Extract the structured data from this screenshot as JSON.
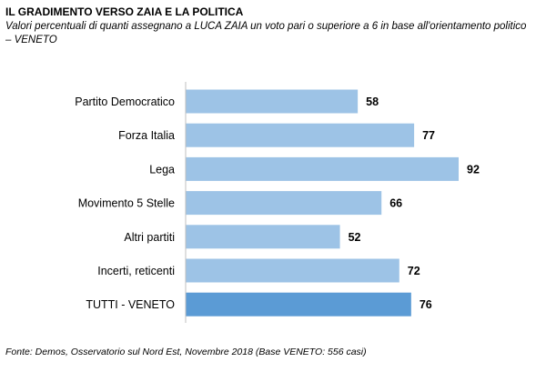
{
  "chart_data": {
    "type": "bar",
    "orientation": "horizontal",
    "title": "IL GRADIMENTO VERSO ZAIA E LA POLITICA",
    "subtitle": "Valori percentuali di quanti assegnano a LUCA ZAIA un voto pari o superiore a 6 in base all'orientamento politico – VENETO",
    "source": "Fonte: Demos, Osservatorio sul Nord Est, Novembre 2018 (Base VENETO: 556 casi)",
    "categories": [
      "Partito Democratico",
      "Forza Italia",
      "Lega",
      "Movimento 5 Stelle",
      "Altri partiti",
      "Incerti, reticenti",
      "TUTTI - VENETO"
    ],
    "values": [
      58,
      77,
      92,
      66,
      52,
      72,
      76
    ],
    "xlim": [
      0,
      100
    ],
    "grid": false,
    "colors": {
      "bar": "#9dc3e6",
      "highlight_bar": "#5b9bd5",
      "axis": "#bfbfbf"
    },
    "highlight_index": 6
  }
}
